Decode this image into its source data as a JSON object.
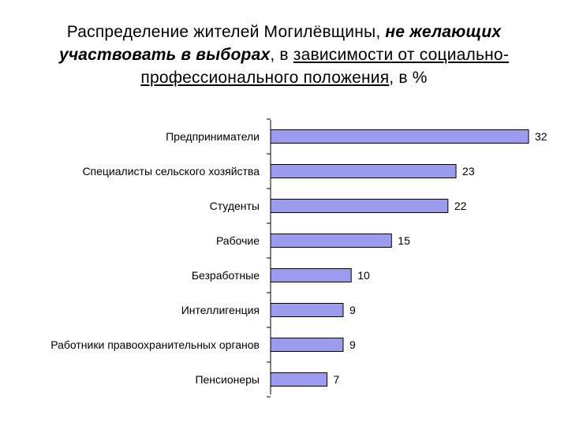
{
  "title": {
    "part1": "Распределение жителей Могилёвщины, ",
    "part2_emph": "не желающих участвовать в выборах",
    "part3": ", в ",
    "part4_underlined": "зависимости от социально-профессионального положения",
    "part5": ", в %"
  },
  "colors": {
    "bar_fill": "#9b9bf0",
    "bar_stroke": "#000000",
    "axis": "#000000"
  },
  "chart_data": {
    "type": "bar",
    "orientation": "horizontal",
    "categories": [
      "Предприниматели",
      "Специалисты сельского хозяйства",
      "Студенты",
      "Рабочие",
      "Безработные",
      "Интеллигенция",
      "Работники правоохранительных органов",
      "Пенсионеры"
    ],
    "values": [
      32,
      23,
      22,
      15,
      10,
      9,
      9,
      7
    ],
    "xlim": [
      0,
      32
    ],
    "grid": false,
    "data_labels": true
  }
}
